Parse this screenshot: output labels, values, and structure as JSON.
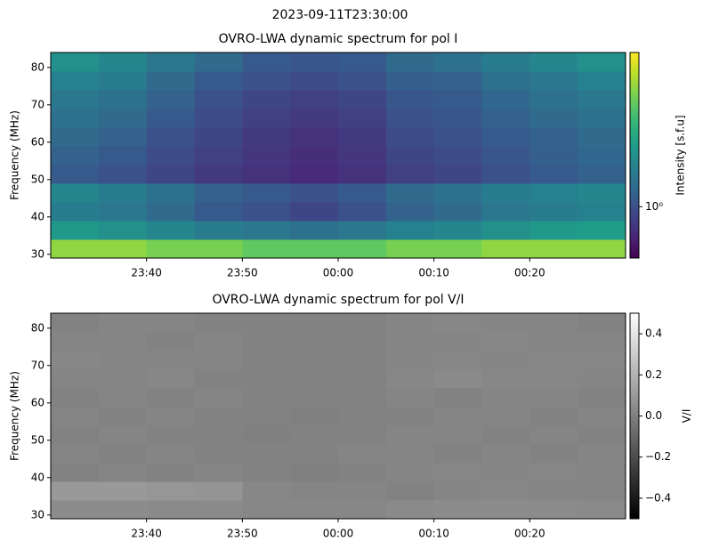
{
  "title": "2023-09-11T23:30:00",
  "chart_data": [
    {
      "type": "heatmap",
      "title": "OVRO-LWA dynamic spectrum for pol I",
      "ylabel": "Frequency (MHz)",
      "xlim": [
        "23:30",
        "00:30"
      ],
      "xticks": [
        "23:40",
        "23:50",
        "00:00",
        "00:10",
        "00:20"
      ],
      "ylim": [
        29,
        84
      ],
      "yticks": [
        30,
        40,
        50,
        60,
        70,
        80
      ],
      "colormap": "viridis",
      "z": [
        [
          5,
          5,
          4.5,
          4.5,
          4,
          4,
          4,
          4.5,
          4.5,
          5,
          5,
          5
        ],
        [
          2.2,
          2,
          1.8,
          1.6,
          1.5,
          1.4,
          1.5,
          1.7,
          1.8,
          2,
          2.2,
          2.3
        ],
        [
          1.6,
          1.5,
          1.3,
          1.1,
          1,
          0.9,
          1,
          1.2,
          1.3,
          1.5,
          1.6,
          1.7
        ],
        [
          1.8,
          1.6,
          1.4,
          1.2,
          1.1,
          1,
          1.1,
          1.3,
          1.4,
          1.6,
          1.7,
          1.8
        ],
        [
          1.1,
          1,
          0.9,
          0.8,
          0.75,
          0.7,
          0.75,
          0.85,
          0.9,
          1,
          1.1,
          1.2
        ],
        [
          1.2,
          1.1,
          0.95,
          0.85,
          0.78,
          0.72,
          0.78,
          0.9,
          0.95,
          1.05,
          1.15,
          1.25
        ],
        [
          1.3,
          1.2,
          1,
          0.9,
          0.8,
          0.75,
          0.8,
          0.95,
          1,
          1.1,
          1.2,
          1.3
        ],
        [
          1.4,
          1.3,
          1.1,
          0.95,
          0.85,
          0.8,
          0.85,
          1,
          1.05,
          1.2,
          1.3,
          1.4
        ],
        [
          1.5,
          1.4,
          1.2,
          1,
          0.9,
          0.85,
          0.9,
          1.05,
          1.1,
          1.25,
          1.4,
          1.5
        ],
        [
          1.7,
          1.6,
          1.3,
          1.1,
          1,
          0.95,
          1,
          1.15,
          1.2,
          1.4,
          1.5,
          1.7
        ],
        [
          2,
          1.8,
          1.5,
          1.3,
          1.1,
          1.05,
          1.1,
          1.3,
          1.4,
          1.6,
          1.8,
          2
        ]
      ],
      "colorbar": {
        "label": "Intensity [s.f.u]",
        "scale": "log",
        "lim": [
          0.5,
          8
        ],
        "ticks": [
          {
            "value": 1,
            "label": "10⁰"
          }
        ]
      }
    },
    {
      "type": "heatmap",
      "title": "OVRO-LWA dynamic spectrum for pol V/I",
      "ylabel": "Frequency (MHz)",
      "xlim": [
        "23:30",
        "00:30"
      ],
      "xticks": [
        "23:40",
        "23:50",
        "00:00",
        "00:10",
        "00:20"
      ],
      "ylim": [
        29,
        84
      ],
      "yticks": [
        30,
        40,
        50,
        60,
        70,
        80
      ],
      "colormap": "gray",
      "z": [
        [
          0.05,
          0.05,
          0.04,
          0.04,
          0.03,
          0.03,
          0.03,
          0.04,
          0.05,
          0.05,
          0.05,
          0.04
        ],
        [
          0.1,
          0.1,
          0.09,
          0.08,
          0.03,
          0.02,
          0.02,
          0.01,
          0.02,
          0.03,
          0.02,
          0.02
        ],
        [
          0.01,
          0.02,
          0.01,
          0.02,
          0.01,
          0,
          0.01,
          0.02,
          0.03,
          0.02,
          0.03,
          0.02
        ],
        [
          0.02,
          0.01,
          0.02,
          0.01,
          0.01,
          0.01,
          0.02,
          0.02,
          0.01,
          0.02,
          0.01,
          0.02
        ],
        [
          0.01,
          0.02,
          0.01,
          0.01,
          0,
          0.01,
          0.01,
          0.02,
          0.02,
          0.01,
          0.02,
          0.01
        ],
        [
          0.02,
          0.01,
          0.02,
          0.01,
          0.01,
          0,
          0.01,
          0.01,
          0.02,
          0.02,
          0.01,
          0.02
        ],
        [
          0.01,
          0.02,
          0.01,
          0.02,
          0.01,
          0.01,
          0.01,
          0.02,
          0.01,
          0.02,
          0.02,
          0.01
        ],
        [
          0.02,
          0.02,
          0.03,
          0.01,
          0.01,
          0.01,
          0.01,
          0.03,
          0.04,
          0.03,
          0.03,
          0.02
        ],
        [
          0.03,
          0.02,
          0.02,
          0.02,
          0.01,
          0.01,
          0.01,
          0.02,
          0.03,
          0.02,
          0.03,
          0.03
        ],
        [
          0.02,
          0.02,
          0.01,
          0.02,
          0.01,
          0.01,
          0.01,
          0.02,
          0.02,
          0.03,
          0.02,
          0.02
        ],
        [
          0.01,
          0.02,
          0.02,
          0.01,
          0.01,
          0.01,
          0.01,
          0.02,
          0.03,
          0.02,
          0.02,
          0.01
        ]
      ],
      "colorbar": {
        "label": "V/I",
        "scale": "linear",
        "lim": [
          -0.5,
          0.5
        ],
        "ticks": [
          {
            "value": -0.4,
            "label": "−0.4"
          },
          {
            "value": -0.2,
            "label": "−0.2"
          },
          {
            "value": 0,
            "label": "0.0"
          },
          0.2,
          0.4
        ]
      }
    }
  ]
}
